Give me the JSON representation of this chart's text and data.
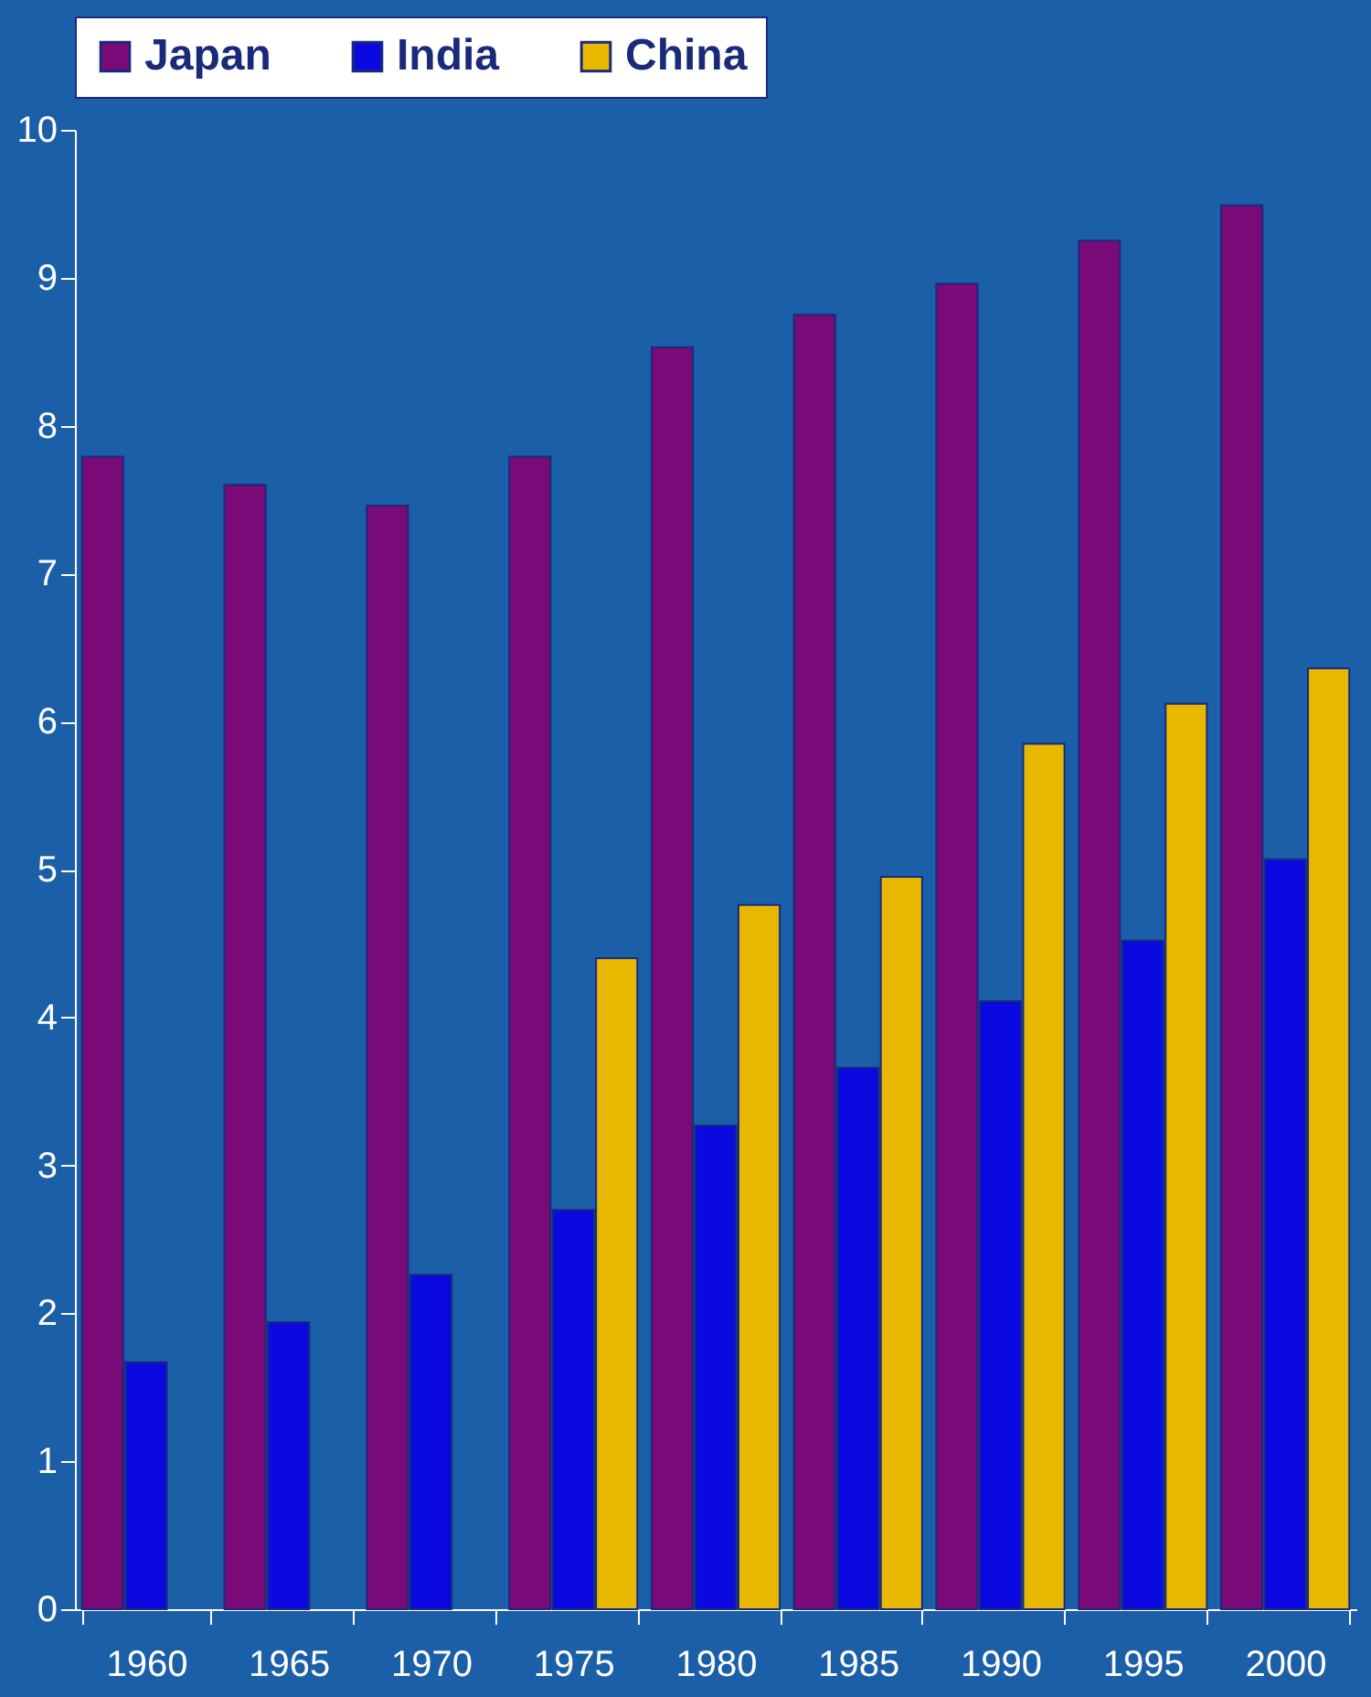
{
  "chart_data": {
    "type": "bar",
    "categories": [
      "1960",
      "1965",
      "1970",
      "1975",
      "1980",
      "1985",
      "1990",
      "1995",
      "2000"
    ],
    "series": [
      {
        "name": "Japan",
        "color": "#7a0a78",
        "values": [
          7.79,
          7.6,
          7.46,
          7.79,
          8.53,
          8.75,
          8.96,
          9.25,
          9.49
        ]
      },
      {
        "name": "India",
        "color": "#0a0ae0",
        "values": [
          1.67,
          1.94,
          2.26,
          2.7,
          3.27,
          3.66,
          4.11,
          4.52,
          5.07
        ]
      },
      {
        "name": "China",
        "color": "#e8b800",
        "values": [
          null,
          null,
          null,
          4.4,
          4.76,
          4.95,
          5.85,
          6.12,
          6.36
        ]
      }
    ],
    "ylim": [
      0,
      10
    ],
    "yticks": [
      0,
      1,
      2,
      3,
      4,
      5,
      6,
      7,
      8,
      9,
      10
    ],
    "grid": false,
    "legend": "top"
  }
}
